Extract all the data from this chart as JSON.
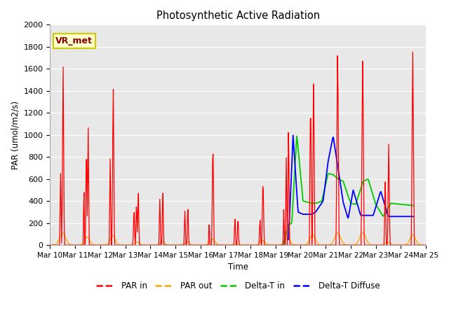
{
  "title": "Photosynthetic Active Radiation",
  "ylabel": "PAR (umol/m2/s)",
  "xlabel": "Time",
  "annotation": "VR_met",
  "ylim": [
    0,
    2000
  ],
  "xlim": [
    0,
    15
  ],
  "background_color": "#e8e8e8",
  "plot_bg": "#e8e8e8",
  "line_colors": {
    "PAR in": "#ff0000",
    "PAR out": "#ffa500",
    "Delta-T in": "#00cc00",
    "Delta-T Diffuse": "#0000ff"
  },
  "legend_labels": [
    "PAR in",
    "PAR out",
    "Delta-T in",
    "Delta-T Diffuse"
  ],
  "yticks": [
    0,
    200,
    400,
    600,
    800,
    1000,
    1200,
    1400,
    1600,
    1800,
    2000
  ],
  "xtick_labels": [
    "Mar 10",
    "Mar 11",
    "Mar 12",
    "Mar 13",
    "Mar 14",
    "Mar 15",
    "Mar 16",
    "Mar 17",
    "Mar 18",
    "Mar 19",
    "Mar 20",
    "Mar 21",
    "Mar 22",
    "Mar 23",
    "Mar 24",
    "Mar 25"
  ]
}
